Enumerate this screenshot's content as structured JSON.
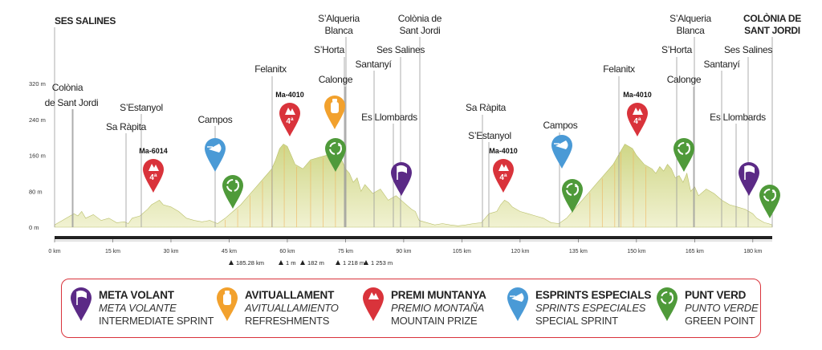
{
  "chart_data": {
    "type": "area",
    "y_axis": {
      "ticks": [
        "320 m",
        "240 m",
        "160 m",
        "80 m",
        "0 m"
      ],
      "values": [
        320,
        240,
        160,
        80,
        0
      ],
      "ylim": [
        0,
        320
      ]
    },
    "x_axis": {
      "ticks": [
        "0 km",
        "15 km",
        "30 km",
        "45 km",
        "60 km",
        "75 km",
        "90 km",
        "105 km",
        "120 km",
        "135 km",
        "150 km",
        "165 km",
        "180 km"
      ],
      "values": [
        0,
        15,
        30,
        45,
        60,
        75,
        90,
        105,
        120,
        135,
        150,
        165,
        180
      ],
      "xlim": [
        0,
        185
      ]
    },
    "profile": {
      "x": [
        0,
        1,
        2,
        3,
        4,
        5,
        6,
        7,
        8,
        10,
        12,
        14,
        16,
        18,
        19,
        20,
        22,
        24,
        25,
        26,
        27,
        28,
        30,
        32,
        34,
        36,
        38,
        40,
        42,
        44,
        46,
        48,
        50,
        52,
        54,
        56,
        57,
        58,
        59,
        60,
        61,
        62,
        64,
        66,
        68,
        70,
        71,
        72,
        73,
        74,
        75,
        76,
        77,
        78,
        79,
        80,
        82,
        84,
        86,
        88,
        90,
        92,
        93,
        94,
        96,
        98,
        100,
        102,
        104,
        106,
        108,
        110,
        112,
        114,
        115,
        116,
        117,
        118,
        120,
        122,
        124,
        126,
        128,
        130,
        132,
        134,
        136,
        138,
        140,
        142,
        144,
        145,
        146,
        147,
        148,
        149,
        150,
        151,
        152,
        154,
        155,
        156,
        157,
        158,
        159,
        160,
        161,
        162,
        163,
        164,
        165,
        166,
        168,
        170,
        172,
        174,
        176,
        178,
        180,
        181,
        182,
        183,
        184,
        185
      ],
      "y": [
        5,
        10,
        15,
        20,
        25,
        30,
        25,
        35,
        20,
        28,
        15,
        20,
        10,
        12,
        8,
        20,
        25,
        40,
        50,
        55,
        60,
        50,
        45,
        35,
        20,
        15,
        12,
        15,
        8,
        20,
        35,
        50,
        70,
        90,
        110,
        130,
        150,
        175,
        185,
        180,
        160,
        140,
        130,
        150,
        155,
        160,
        170,
        145,
        165,
        150,
        130,
        120,
        100,
        110,
        80,
        95,
        75,
        85,
        60,
        70,
        55,
        40,
        35,
        15,
        10,
        5,
        8,
        5,
        3,
        5,
        8,
        10,
        30,
        35,
        50,
        60,
        55,
        45,
        35,
        30,
        25,
        20,
        10,
        8,
        20,
        40,
        60,
        80,
        100,
        120,
        140,
        155,
        170,
        185,
        180,
        175,
        160,
        150,
        140,
        130,
        120,
        135,
        125,
        140,
        130,
        110,
        115,
        100,
        120,
        80,
        90,
        70,
        85,
        75,
        60,
        50,
        45,
        40,
        30,
        20,
        15,
        10,
        8,
        5
      ]
    },
    "top_labels": [
      {
        "km": 0.5,
        "text": "SES SALINES"
      },
      {
        "km": 82,
        "text": "S’Alqueria"
      },
      {
        "km": 82,
        "text": "Blanca"
      },
      {
        "km": 95,
        "text": "Colònia de"
      },
      {
        "km": 95,
        "text": "Sant Jordi"
      },
      {
        "km": 172,
        "text": "S’Alqueria"
      },
      {
        "km": 172,
        "text": "Blanca"
      },
      {
        "km": 185,
        "text": "COLÒNIA DE"
      },
      {
        "km": 185,
        "text": "SANT JORDI"
      },
      {
        "km": 75,
        "text": "S’Horta"
      },
      {
        "km": 90,
        "text": "Ses Salines"
      },
      {
        "km": 64,
        "text": "Felanitx"
      },
      {
        "km": 82,
        "text": "Santanyí"
      },
      {
        "km": 166,
        "text": "S’Horta"
      },
      {
        "km": 181,
        "text": "Ses Salines"
      },
      {
        "km": 153,
        "text": "Felanitx"
      },
      {
        "km": 173,
        "text": "Santanyí"
      },
      {
        "km": 8,
        "text": "Colònia"
      },
      {
        "km": 7,
        "text": "de Sant Jordi"
      },
      {
        "km": 78,
        "text": "Calonge"
      },
      {
        "km": 168,
        "text": "Calonge"
      },
      {
        "km": 22,
        "text": "S’Estanyol"
      },
      {
        "km": 41,
        "text": "Campos"
      },
      {
        "km": 88,
        "text": "Es Llombards"
      },
      {
        "km": 109,
        "text": "Sa Ràpita"
      },
      {
        "km": 130,
        "text": "Campos"
      },
      {
        "km": 178,
        "text": "Es Llombards"
      },
      {
        "km": 17,
        "text": "Sa Ràpita"
      },
      {
        "km": 110,
        "text": "S’Estanyol"
      }
    ],
    "climbs": [
      {
        "km": 26,
        "road": "Ma-6014",
        "category": "4ª"
      },
      {
        "km": 60,
        "road": "Ma-4010",
        "category": "4ª"
      },
      {
        "km": 116,
        "road": "Ma-4010",
        "category": "4ª"
      },
      {
        "km": 148,
        "road": "Ma-4010",
        "category": "4ª"
      }
    ],
    "markers": [
      {
        "type": "sprint",
        "km": 41
      },
      {
        "type": "green",
        "km": 47
      },
      {
        "type": "refreshment",
        "km": 72
      },
      {
        "type": "green",
        "km": 72
      },
      {
        "type": "intermediate",
        "km": 88
      },
      {
        "type": "sprint",
        "km": 129
      },
      {
        "type": "green",
        "km": 135
      },
      {
        "type": "green",
        "km": 162
      },
      {
        "type": "intermediate",
        "km": 178
      },
      {
        "type": "green",
        "km": 185
      }
    ],
    "stats": [
      "185.28 km",
      "1 m",
      "182 m",
      "1 218 m",
      "1 253 m"
    ]
  },
  "legend": [
    {
      "key": "intermediate",
      "color": "#5b2a86",
      "main": "META VOLANT",
      "es": "META VOLANTE",
      "en": "INTERMEDIATE SPRINT"
    },
    {
      "key": "refreshment",
      "color": "#f2a12d",
      "main": "AVITUALLAMENT",
      "es": "AVITUALLAMIENTO",
      "en": "REFRESHMENTS"
    },
    {
      "key": "mountain",
      "color": "#d9333b",
      "main": "PREMI MUNTANYA",
      "es": "PREMIO MONTAÑA",
      "en": "MOUNTAIN PRIZE"
    },
    {
      "key": "sprint",
      "color": "#4a9ad6",
      "main": "ESPRINTS ESPECIALS",
      "es": "SPRINTS ESPECIALES",
      "en": "SPECIAL SPRINT"
    },
    {
      "key": "green",
      "color": "#4f9a3a",
      "main": "PUNT VERD",
      "es": "PUNTO VERDE",
      "en": "GREEN POINT"
    }
  ],
  "colors": {
    "fill_light": "#eef0c8",
    "fill_dark": "#d4d98a",
    "axis": "#222222",
    "mountain": "#d9333b",
    "refreshment": "#f2a12d",
    "sprint": "#4a9ad6",
    "green": "#4f9a3a",
    "intermediate": "#5b2a86"
  }
}
